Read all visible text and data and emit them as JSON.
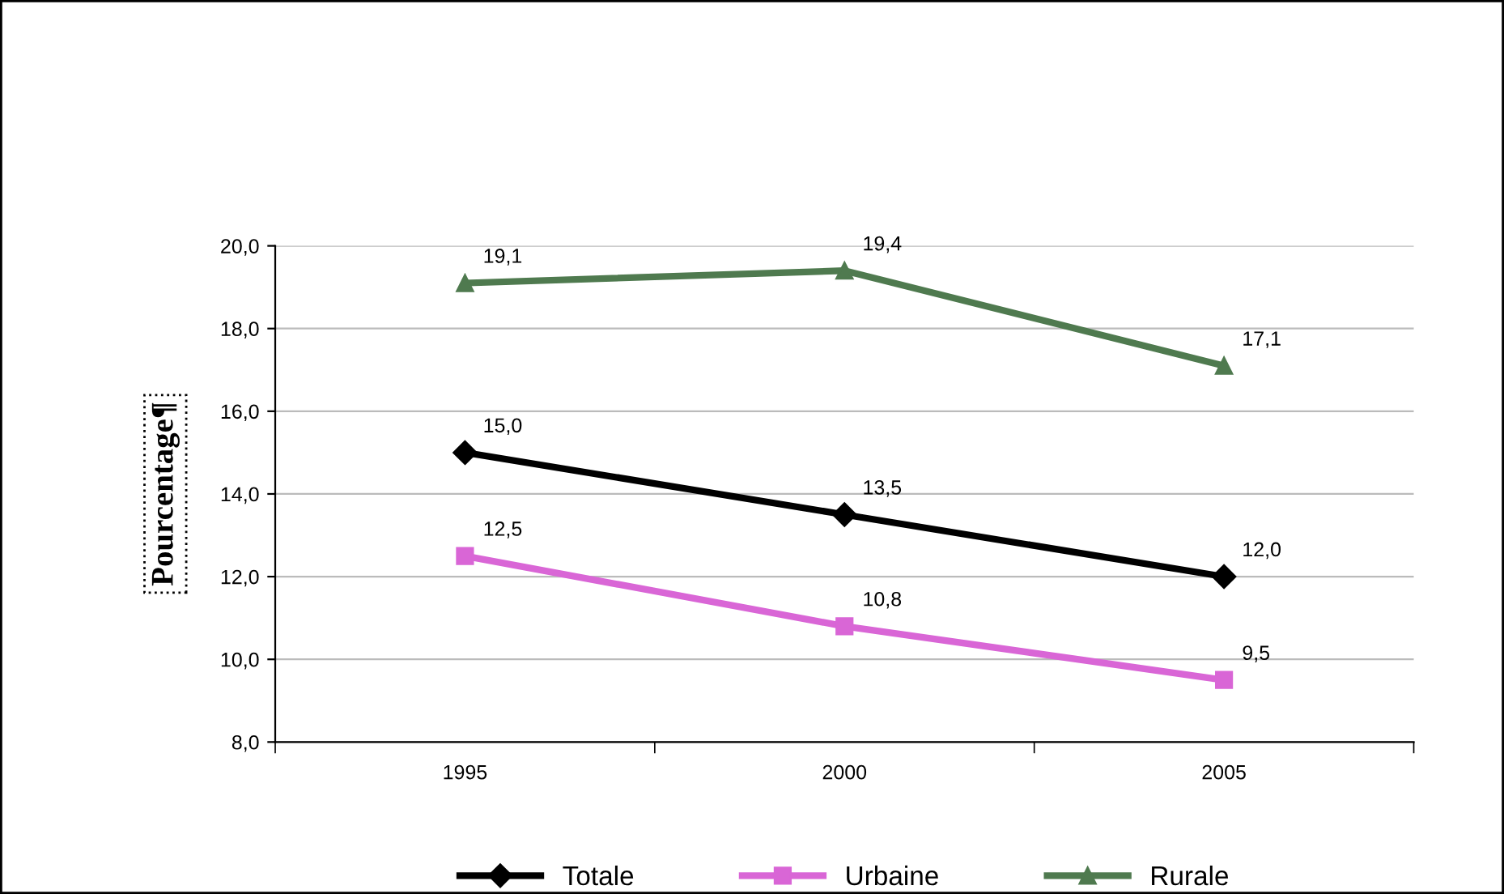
{
  "chart_data": {
    "type": "line",
    "ylabel": "Pourcentage¶",
    "categories": [
      "1995",
      "2000",
      "2005"
    ],
    "series": [
      {
        "name": "Totale",
        "color": "#000000",
        "marker": "diamond",
        "values": [
          15.0,
          13.5,
          12.0
        ],
        "value_labels": [
          "15,0",
          "13,5",
          "12,0"
        ]
      },
      {
        "name": "Urbaine",
        "color": "#d966d6",
        "marker": "square",
        "values": [
          12.5,
          10.8,
          9.5
        ],
        "value_labels": [
          "12,5",
          "10,8",
          "9,5"
        ]
      },
      {
        "name": "Rurale",
        "color": "#4f7a4f",
        "marker": "triangle",
        "values": [
          19.1,
          19.4,
          17.1
        ],
        "value_labels": [
          "19,1",
          "19,4",
          "17,1"
        ]
      }
    ],
    "ylim": [
      8.0,
      20.0
    ],
    "yticks": [
      {
        "value": 8,
        "label": "8,0"
      },
      {
        "value": 10,
        "label": "10,0"
      },
      {
        "value": 12,
        "label": "12,0"
      },
      {
        "value": 14,
        "label": "14,0"
      },
      {
        "value": 16,
        "label": "16,0"
      },
      {
        "value": 18,
        "label": "18,0"
      },
      {
        "value": 20,
        "label": "20,0"
      }
    ],
    "grid": "y",
    "legend": "bottom",
    "line_style": "solid"
  }
}
